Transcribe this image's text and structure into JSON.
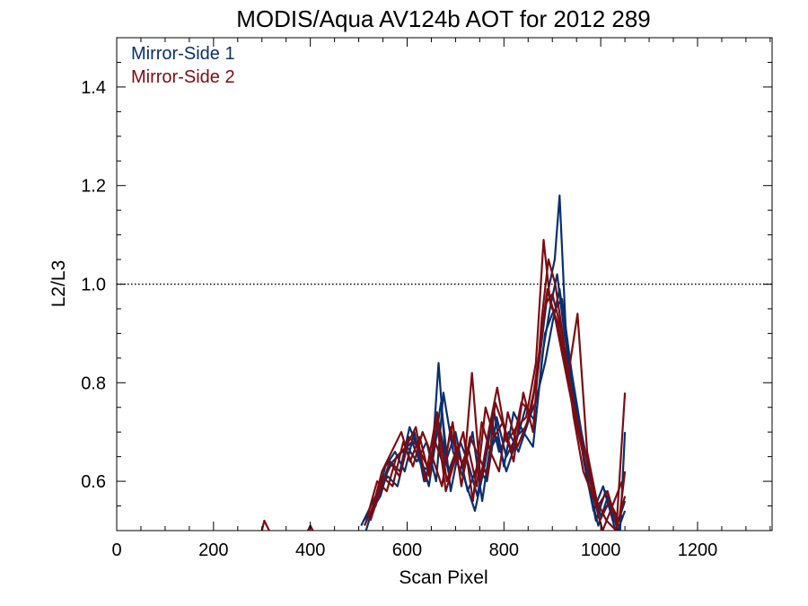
{
  "chart_data": {
    "type": "line",
    "title": "MODIS/Aqua AV124b AOT for 2012 289",
    "xlabel": "Scan Pixel",
    "ylabel": "L2/L3",
    "xlim": [
      0,
      1354
    ],
    "ylim": [
      0.5,
      1.5
    ],
    "xticks": [
      0,
      200,
      400,
      600,
      800,
      1000,
      1200
    ],
    "yticks": [
      0.6,
      0.8,
      1.0,
      1.2,
      1.4
    ],
    "xtick_labels": [
      "0",
      "200",
      "400",
      "600",
      "800",
      "1000",
      "1200"
    ],
    "ytick_labels": [
      "0.6",
      "0.8",
      "1.0",
      "1.2",
      "1.4"
    ],
    "reference_line": {
      "y": 1.0,
      "style": "dotted",
      "color": "#000000"
    },
    "grid": false,
    "legend_position": "top-left",
    "series": [
      {
        "name": "Mirror-Side 1",
        "color": "#0b2f6e",
        "lines": [
          {
            "x": [
              505,
              530,
              550,
              570,
              590,
              610,
              630,
              650,
              665,
              680,
              700,
              720,
              740,
              760,
              775,
              790,
              810,
              830,
              850,
              870,
              890,
              905,
              915,
              930,
              950,
              970,
              990,
              1010,
              1030,
              1050
            ],
            "y": [
              0.51,
              0.56,
              0.6,
              0.64,
              0.66,
              0.68,
              0.63,
              0.62,
              0.84,
              0.64,
              0.7,
              0.6,
              0.54,
              0.63,
              0.72,
              0.66,
              0.7,
              0.66,
              0.72,
              0.82,
              0.98,
              1.05,
              1.18,
              0.86,
              0.74,
              0.62,
              0.52,
              0.58,
              0.5,
              0.56
            ]
          },
          {
            "x": [
              510,
              535,
              555,
              575,
              595,
              615,
              635,
              655,
              670,
              690,
              710,
              725,
              745,
              765,
              780,
              800,
              820,
              840,
              860,
              880,
              895,
              910,
              925,
              945,
              965,
              985,
              1005,
              1025,
              1045
            ],
            "y": [
              0.52,
              0.55,
              0.63,
              0.66,
              0.62,
              0.7,
              0.6,
              0.66,
              0.76,
              0.58,
              0.68,
              0.64,
              0.57,
              0.68,
              0.74,
              0.63,
              0.74,
              0.7,
              0.67,
              0.86,
              0.95,
              1.02,
              0.9,
              0.78,
              0.64,
              0.54,
              0.59,
              0.52,
              0.53
            ]
          },
          {
            "x": [
              515,
              540,
              560,
              580,
              600,
              620,
              640,
              660,
              675,
              695,
              715,
              735,
              755,
              770,
              785,
              805,
              825,
              845,
              865,
              885,
              900,
              920,
              940,
              960,
              980,
              1000,
              1020,
              1040,
              1050
            ],
            "y": [
              0.5,
              0.58,
              0.61,
              0.59,
              0.67,
              0.64,
              0.68,
              0.6,
              0.78,
              0.66,
              0.61,
              0.7,
              0.56,
              0.66,
              0.69,
              0.62,
              0.68,
              0.75,
              0.72,
              0.9,
              0.94,
              0.97,
              0.82,
              0.7,
              0.6,
              0.53,
              0.56,
              0.5,
              0.7
            ]
          },
          {
            "x": [
              520,
              545,
              565,
              585,
              605,
              625,
              645,
              665,
              685,
              705,
              725,
              745,
              765,
              785,
              805,
              825,
              845,
              865,
              885,
              900,
              915,
              935,
              955,
              975,
              995,
              1015,
              1035,
              1050
            ],
            "y": [
              0.53,
              0.57,
              0.64,
              0.62,
              0.71,
              0.66,
              0.59,
              0.72,
              0.62,
              0.67,
              0.58,
              0.63,
              0.6,
              0.73,
              0.65,
              0.69,
              0.71,
              0.76,
              0.84,
              0.92,
              0.99,
              0.85,
              0.72,
              0.59,
              0.51,
              0.57,
              0.5,
              0.54
            ]
          }
        ]
      },
      {
        "name": "Mirror-Side 2",
        "color": "#7a0d12",
        "lines": [
          {
            "x": [
              300,
              305,
              310,
              315
            ],
            "y": [
              0.5,
              0.52,
              0.51,
              0.5
            ]
          },
          {
            "x": [
              395,
              400,
              405
            ],
            "y": [
              0.5,
              0.51,
              0.5
            ]
          },
          {
            "x": [
              512,
              530,
              548,
              568,
              588,
              606,
              626,
              646,
              662,
              682,
              700,
              718,
              734,
              752,
              768,
              786,
              806,
              826,
              846,
              866,
              882,
              896,
              912,
              932,
              952,
              972,
              992,
              1012,
              1032,
              1050
            ],
            "y": [
              0.51,
              0.55,
              0.62,
              0.66,
              0.7,
              0.64,
              0.69,
              0.61,
              0.74,
              0.6,
              0.66,
              0.63,
              0.82,
              0.6,
              0.7,
              0.79,
              0.68,
              0.71,
              0.73,
              0.84,
              1.09,
              0.96,
              0.92,
              0.81,
              0.94,
              0.66,
              0.56,
              0.52,
              0.5,
              0.78
            ]
          },
          {
            "x": [
              518,
              538,
              558,
              578,
              598,
              618,
              638,
              658,
              676,
              694,
              712,
              730,
              748,
              766,
              782,
              800,
              820,
              840,
              860,
              878,
              892,
              906,
              924,
              944,
              964,
              984,
              1004,
              1024,
              1044
            ],
            "y": [
              0.53,
              0.6,
              0.58,
              0.65,
              0.67,
              0.71,
              0.6,
              0.68,
              0.63,
              0.72,
              0.59,
              0.69,
              0.65,
              0.61,
              0.76,
              0.71,
              0.64,
              0.78,
              0.7,
              0.93,
              1.05,
              1.0,
              0.88,
              0.73,
              0.62,
              0.57,
              0.5,
              0.55,
              0.6
            ]
          },
          {
            "x": [
              524,
              544,
              564,
              584,
              604,
              622,
              642,
              660,
              680,
              698,
              716,
              736,
              754,
              772,
              790,
              808,
              828,
              848,
              868,
              886,
              900,
              918,
              938,
              956,
              974,
              994,
              1014,
              1034,
              1050
            ],
            "y": [
              0.52,
              0.58,
              0.64,
              0.61,
              0.69,
              0.67,
              0.63,
              0.73,
              0.58,
              0.64,
              0.7,
              0.56,
              0.72,
              0.66,
              0.62,
              0.74,
              0.67,
              0.72,
              0.81,
              0.96,
              0.98,
              0.91,
              0.79,
              0.7,
              0.64,
              0.55,
              0.58,
              0.51,
              0.57
            ]
          },
          {
            "x": [
              528,
              548,
              570,
              592,
              612,
              632,
              652,
              672,
              690,
              708,
              726,
              744,
              762,
              780,
              798,
              816,
              836,
              856,
              874,
              890,
              904,
              920,
              940,
              960,
              978,
              998,
              1018,
              1038,
              1050
            ],
            "y": [
              0.54,
              0.61,
              0.59,
              0.68,
              0.63,
              0.7,
              0.65,
              0.59,
              0.71,
              0.62,
              0.67,
              0.59,
              0.75,
              0.69,
              0.72,
              0.66,
              0.76,
              0.74,
              0.87,
              0.99,
              0.94,
              0.86,
              0.76,
              0.67,
              0.6,
              0.52,
              0.56,
              0.52,
              0.62
            ]
          }
        ]
      }
    ]
  }
}
